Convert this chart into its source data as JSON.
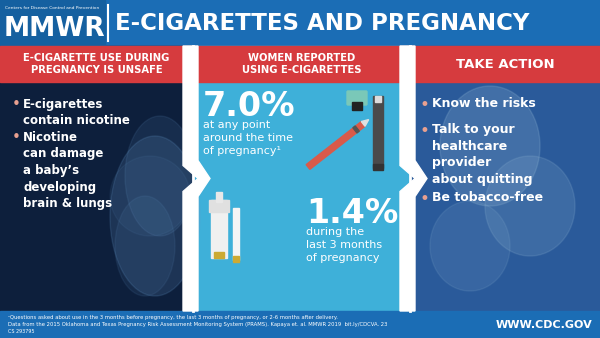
{
  "title": "E-CIGARETTES AND PREGNANCY",
  "header_bg": "#1b6db5",
  "header_text_color": "#ffffff",
  "mmwr_text": "MMWR",
  "cdc_text": "Centers for Disease Control and Prevention",
  "col1_header": "E-CIGARETTE USE DURING\nPREGNANCY IS UNSAFE",
  "col1_header_bg": "#d63b3e",
  "col1_header_text": "#ffffff",
  "col1_bg": "#0d1f3c",
  "col1_bullet1": "E-cigarettes\ncontain nicotine",
  "col1_bullet2": "Nicotine\ncan damage\na baby’s\ndeveloping\nbrain & lungs",
  "col1_text_color": "#ffffff",
  "col1_bullet_color": "#e8a090",
  "col2_header": "WOMEN REPORTED\nUSING E-CIGARETTES",
  "col2_header_bg": "#d63b3e",
  "col2_header_text": "#ffffff",
  "col2_bg": "#3eb0d9",
  "col2_stat1": "7.0%",
  "col2_stat1_sub": "at any point\naround the time\nof pregnancy¹",
  "col2_stat2": "1.4%",
  "col2_stat2_sub": "during the\nlast 3 months\nof pregnancy",
  "col2_text_color": "#ffffff",
  "col3_header": "TAKE ACTION",
  "col3_header_bg": "#d63b3e",
  "col3_header_text": "#ffffff",
  "col3_bg": "#2a5a9a",
  "col3_bullet1": "Know the risks",
  "col3_bullet2": "Talk to your\nhealthcare\nprovider\nabout quitting",
  "col3_bullet3": "Be tobacco-free",
  "col3_text_color": "#ffffff",
  "col3_bullet_color": "#e8a090",
  "footer_bg": "#1b6db5",
  "footer_text": "¹Questions asked about use in the 3 months before pregnancy, the last 3 months of pregnancy, or 2-6 months after delivery.\nData from the 2015 Oklahoma and Texas Pregnancy Risk Assessment Monitoring System (PRAMS). Kapaya et. al. MMWR 2019  bit.ly/CDCVA. 23",
  "footer_text_color": "#ffffff",
  "footer_url": "WWW.CDC.GOV",
  "footer_code": "CS 293795",
  "fig_width": 6.0,
  "fig_height": 3.38,
  "dpi": 100
}
